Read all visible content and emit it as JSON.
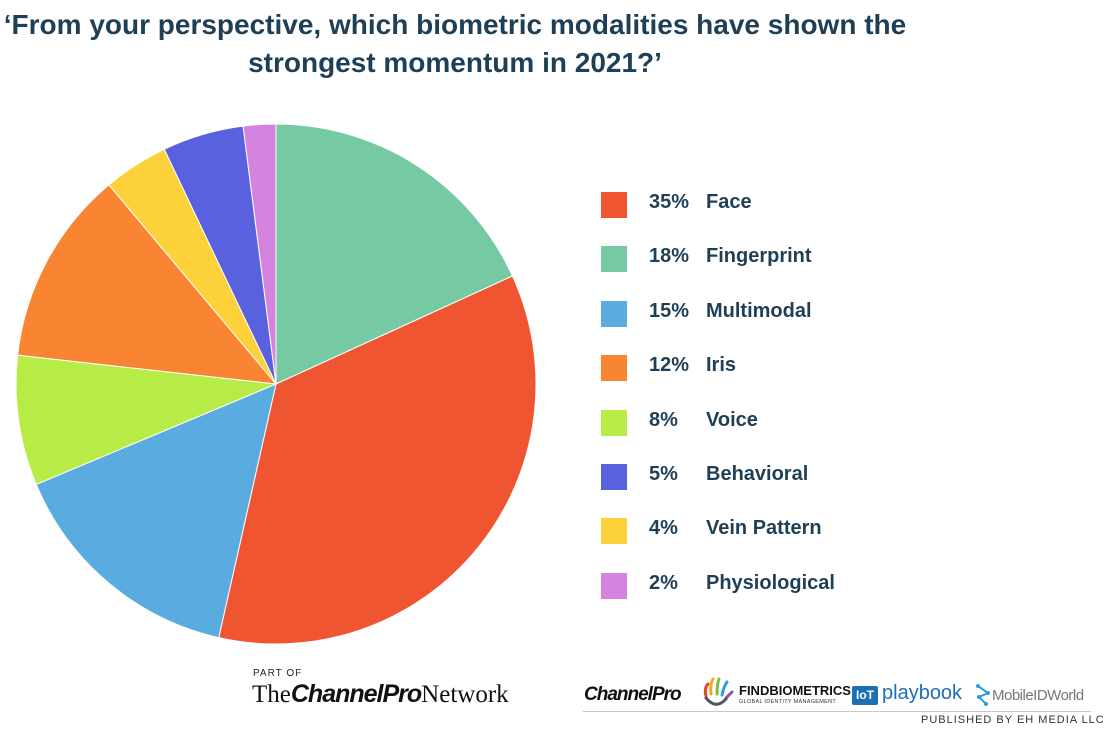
{
  "chart_data": {
    "type": "pie",
    "title": "‘From your perspective, which biometric modalities have shown the strongest momentum in 2021?’",
    "legend_position": "right",
    "slices": [
      {
        "label": "Face",
        "value": 35,
        "value_label": "35%",
        "color": "#f05532"
      },
      {
        "label": "Fingerprint",
        "value": 18,
        "value_label": "18%",
        "color": "#75c9a3"
      },
      {
        "label": "Multimodal",
        "value": 15,
        "value_label": "15%",
        "color": "#5aabdf"
      },
      {
        "label": "Iris",
        "value": 12,
        "value_label": "12%",
        "color": "#f98432"
      },
      {
        "label": "Voice",
        "value": 8,
        "value_label": "8%",
        "color": "#b6ec45"
      },
      {
        "label": "Behavioral",
        "value": 5,
        "value_label": "5%",
        "color": "#5961df"
      },
      {
        "label": "Vein Pattern",
        "value": 4,
        "value_label": "4%",
        "color": "#fdd13a"
      },
      {
        "label": "Physiological",
        "value": 2,
        "value_label": "2%",
        "color": "#d484df"
      }
    ],
    "clockwise_order_from_top": [
      "Fingerprint",
      "Face",
      "Multimodal",
      "Voice",
      "Iris",
      "Vein Pattern",
      "Behavioral",
      "Physiological"
    ]
  },
  "footer": {
    "part_of": "PART OF",
    "network_the": "The",
    "network_bold": "ChannelPro",
    "network_rest": "Network",
    "logo_channelpro": "ChannelPro",
    "logo_findbiometrics": "FINDBIOMETRICS",
    "logo_findbiometrics_sub": "GLOBAL IDENTITY MANAGEMENT",
    "logo_iot_badge": "IoT",
    "logo_iot": "playbook",
    "logo_mobileid": "MobileIDWorld",
    "publisher": "PUBLISHED BY EH MEDIA LLC"
  }
}
